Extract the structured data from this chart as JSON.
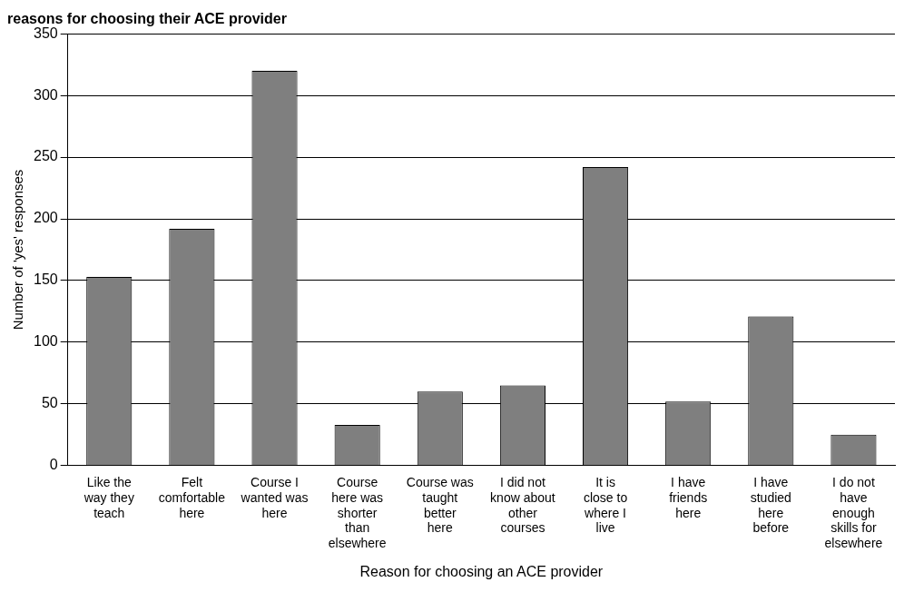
{
  "chart_data": {
    "type": "bar",
    "title": "reasons for choosing their ACE provider",
    "xlabel": "Reason for choosing an ACE provider",
    "ylabel": "Number of 'yes' responses",
    "categories": [
      "Like the way they teach",
      "Felt comfortable here",
      "Course I wanted was here",
      "Course here was shorter than elsewhere",
      "Course was taught better here",
      "I did not know about other courses",
      "It is close to where I live",
      "I have friends here",
      "I have studied here before",
      "I do not have enough skills for elsewhere"
    ],
    "values": [
      153,
      192,
      320,
      33,
      60,
      65,
      242,
      52,
      121,
      25
    ],
    "color": "#7f7f7f",
    "ylim": [
      0,
      350
    ],
    "yticks": [
      0,
      50,
      100,
      150,
      200,
      250,
      300,
      350
    ],
    "grid": "y",
    "legend": false
  }
}
